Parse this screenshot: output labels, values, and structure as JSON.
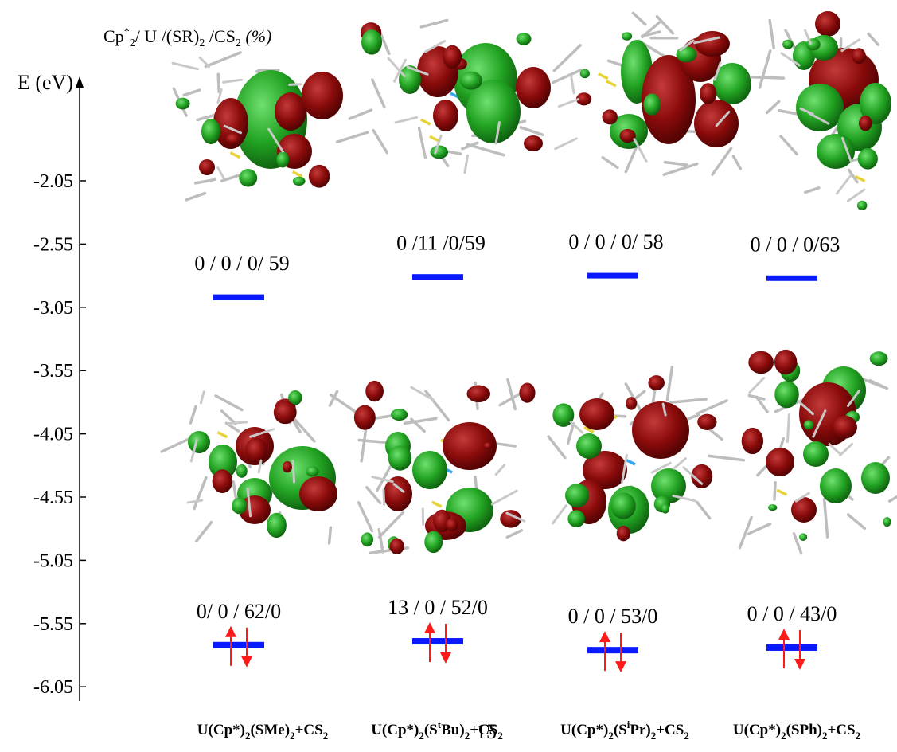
{
  "header": {
    "composition_prefix": "Cp",
    "composition_sup": "*",
    "composition_sub": "2",
    "composition_mid": "/ U /(SR)",
    "composition_sub2": "2",
    "composition_mid2": " /CS",
    "composition_sub3": "2",
    "composition_suffix": " (%)"
  },
  "axis": {
    "label": "E (eV)",
    "ticks": [
      "-2.05",
      "-2.55",
      "-3.05",
      "-3.55",
      "-4.05",
      "-4.55",
      "-5.05",
      "-5.55",
      "-6.05"
    ],
    "range": [
      -6.05,
      -2.05
    ]
  },
  "colors": {
    "level": "#0a1aff",
    "arrow": "#ff1a1a",
    "orbital_green": "#2aa12a",
    "orbital_red": "#8b0a0a",
    "bond": "#b8b8b8"
  },
  "page_number": "15",
  "columns": [
    {
      "lumo_label": "0 / 0 / 0/ 59",
      "lumo_energy": -2.97,
      "homo_label": "0/ 0 / 62/0",
      "homo_energy": -5.72,
      "name": {
        "a": "U(Cp*)",
        "b": "2",
        "c": "(SMe)",
        "d": "2",
        "e": "",
        "f": "",
        "g": "+CS",
        "h": "2"
      }
    },
    {
      "lumo_label": "0 /11 /0/59",
      "lumo_energy": -2.81,
      "homo_label": "13 / 0 / 52/0",
      "homo_energy": -5.69,
      "name": {
        "a": "U(Cp*)",
        "b": "2",
        "c": "(S",
        "d": "t",
        "e": "Bu)",
        "f": "2",
        "g": "+CS",
        "h": "2"
      }
    },
    {
      "lumo_label": "0 / 0 / 0/ 58",
      "lumo_energy": -2.8,
      "homo_label": "0 / 0 / 53/0",
      "homo_energy": -5.76,
      "name": {
        "a": "U(Cp*)",
        "b": "2",
        "c": "(S",
        "d": "i",
        "e": "Pr)",
        "f": "2",
        "g": "+CS",
        "h": "2"
      }
    },
    {
      "lumo_label": "0 / 0 / 0/63",
      "lumo_energy": -2.82,
      "homo_label": "0 / 0 / 43/0",
      "homo_energy": -5.74,
      "name": {
        "a": "U(Cp*)",
        "b": "2",
        "c": "(SPh)",
        "d": "2",
        "e": "",
        "f": "",
        "g": "+CS",
        "h": "2"
      }
    }
  ]
}
